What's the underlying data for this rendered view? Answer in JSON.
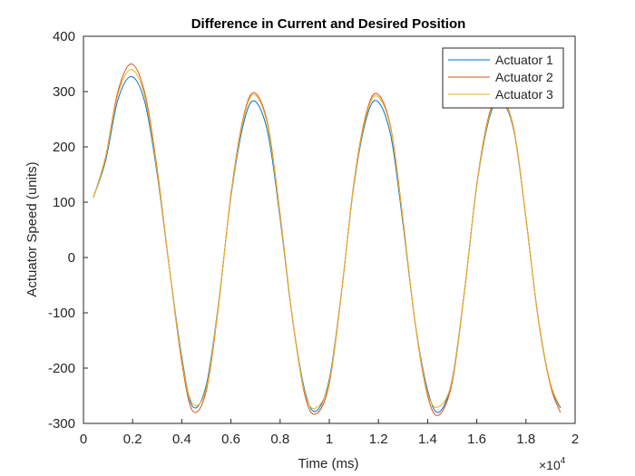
{
  "chart_data": {
    "type": "line",
    "title": "Difference in Current and Desired Position",
    "xlabel": "Time (ms)",
    "ylabel": "Actuator Speed (units)",
    "x_exponent_label": "×10",
    "x_exponent_power": "4",
    "xlim": [
      0,
      20000
    ],
    "ylim": [
      -300,
      400
    ],
    "x_ticks": [
      0,
      2000,
      4000,
      6000,
      8000,
      10000,
      12000,
      14000,
      16000,
      18000,
      20000
    ],
    "x_tick_labels": [
      "0",
      "0.2",
      "0.4",
      "0.6",
      "0.8",
      "1",
      "1.2",
      "1.4",
      "1.6",
      "1.8",
      "2"
    ],
    "y_ticks": [
      -300,
      -200,
      -100,
      0,
      100,
      200,
      300,
      400
    ],
    "y_tick_labels": [
      "-300",
      "-200",
      "-100",
      "0",
      "100",
      "200",
      "300",
      "400"
    ],
    "grid": false,
    "legend_position": "top-right",
    "x": [
      400,
      900,
      1400,
      1950,
      2500,
      3000,
      3500,
      4000,
      4450,
      5000,
      5500,
      6000,
      6500,
      6950,
      7500,
      8000,
      8500,
      9000,
      9450,
      10000,
      10500,
      11000,
      11500,
      11950,
      12500,
      13000,
      13500,
      14000,
      14450,
      15000,
      15500,
      16000,
      16500,
      16950,
      17500,
      18000,
      18500,
      19000,
      19400
    ],
    "series": [
      {
        "name": "Actuator 1",
        "color": "#0072BD",
        "values": [
          108,
          175,
          285,
          327,
          280,
          150,
          -20,
          -180,
          -270,
          -230,
          -80,
          110,
          240,
          283,
          225,
          70,
          -110,
          -240,
          -278,
          -220,
          -60,
          130,
          250,
          283,
          220,
          60,
          -120,
          -240,
          -280,
          -220,
          -60,
          130,
          250,
          285,
          230,
          70,
          -110,
          -230,
          -272
        ]
      },
      {
        "name": "Actuator 2",
        "color": "#D95319",
        "values": [
          108,
          182,
          300,
          350,
          296,
          160,
          -20,
          -190,
          -278,
          -240,
          -85,
          115,
          252,
          298,
          240,
          78,
          -110,
          -248,
          -283,
          -228,
          -62,
          135,
          260,
          296,
          235,
          68,
          -122,
          -250,
          -285,
          -226,
          -62,
          133,
          258,
          290,
          234,
          72,
          -112,
          -232,
          -280
        ]
      },
      {
        "name": "Actuator 3",
        "color": "#EDB120",
        "values": [
          108,
          180,
          295,
          340,
          290,
          155,
          -20,
          -185,
          -265,
          -235,
          -82,
          112,
          248,
          295,
          236,
          75,
          -108,
          -244,
          -272,
          -224,
          -60,
          132,
          256,
          292,
          232,
          66,
          -120,
          -245,
          -270,
          -222,
          -60,
          131,
          254,
          288,
          232,
          70,
          -110,
          -228,
          -270
        ]
      }
    ]
  }
}
